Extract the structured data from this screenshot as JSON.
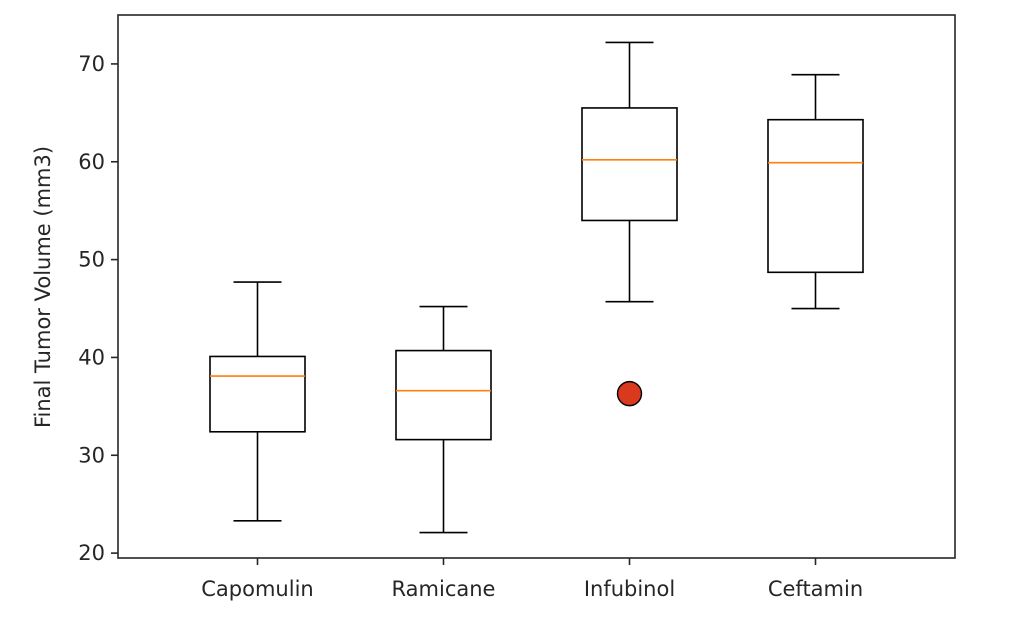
{
  "chart_data": {
    "type": "box",
    "title": "",
    "xlabel": "",
    "ylabel": "Final Tumor Volume (mm3)",
    "ylim": [
      19.5,
      75
    ],
    "yticks": [
      20,
      30,
      40,
      50,
      60,
      70
    ],
    "grid": false,
    "categories": [
      "Capomulin",
      "Ramicane",
      "Infubinol",
      "Ceftamin"
    ],
    "boxes": [
      {
        "name": "Capomulin",
        "whisker_low": 23.3,
        "q1": 32.4,
        "median": 38.1,
        "q3": 40.1,
        "whisker_high": 47.7,
        "outliers": []
      },
      {
        "name": "Ramicane",
        "whisker_low": 22.1,
        "q1": 31.6,
        "median": 36.6,
        "q3": 40.7,
        "whisker_high": 45.2,
        "outliers": []
      },
      {
        "name": "Infubinol",
        "whisker_low": 45.7,
        "q1": 54.0,
        "median": 60.2,
        "q3": 65.5,
        "whisker_high": 72.2,
        "outliers": [
          36.3
        ]
      },
      {
        "name": "Ceftamin",
        "whisker_low": 45.0,
        "q1": 48.7,
        "median": 59.9,
        "q3": 64.3,
        "whisker_high": 68.9,
        "outliers": []
      }
    ],
    "colors": {
      "box": "#000000",
      "median": "#ff7f0e",
      "outlier_fill": "#d9391c",
      "outlier_edge": "#000000",
      "axis": "#262626"
    }
  }
}
